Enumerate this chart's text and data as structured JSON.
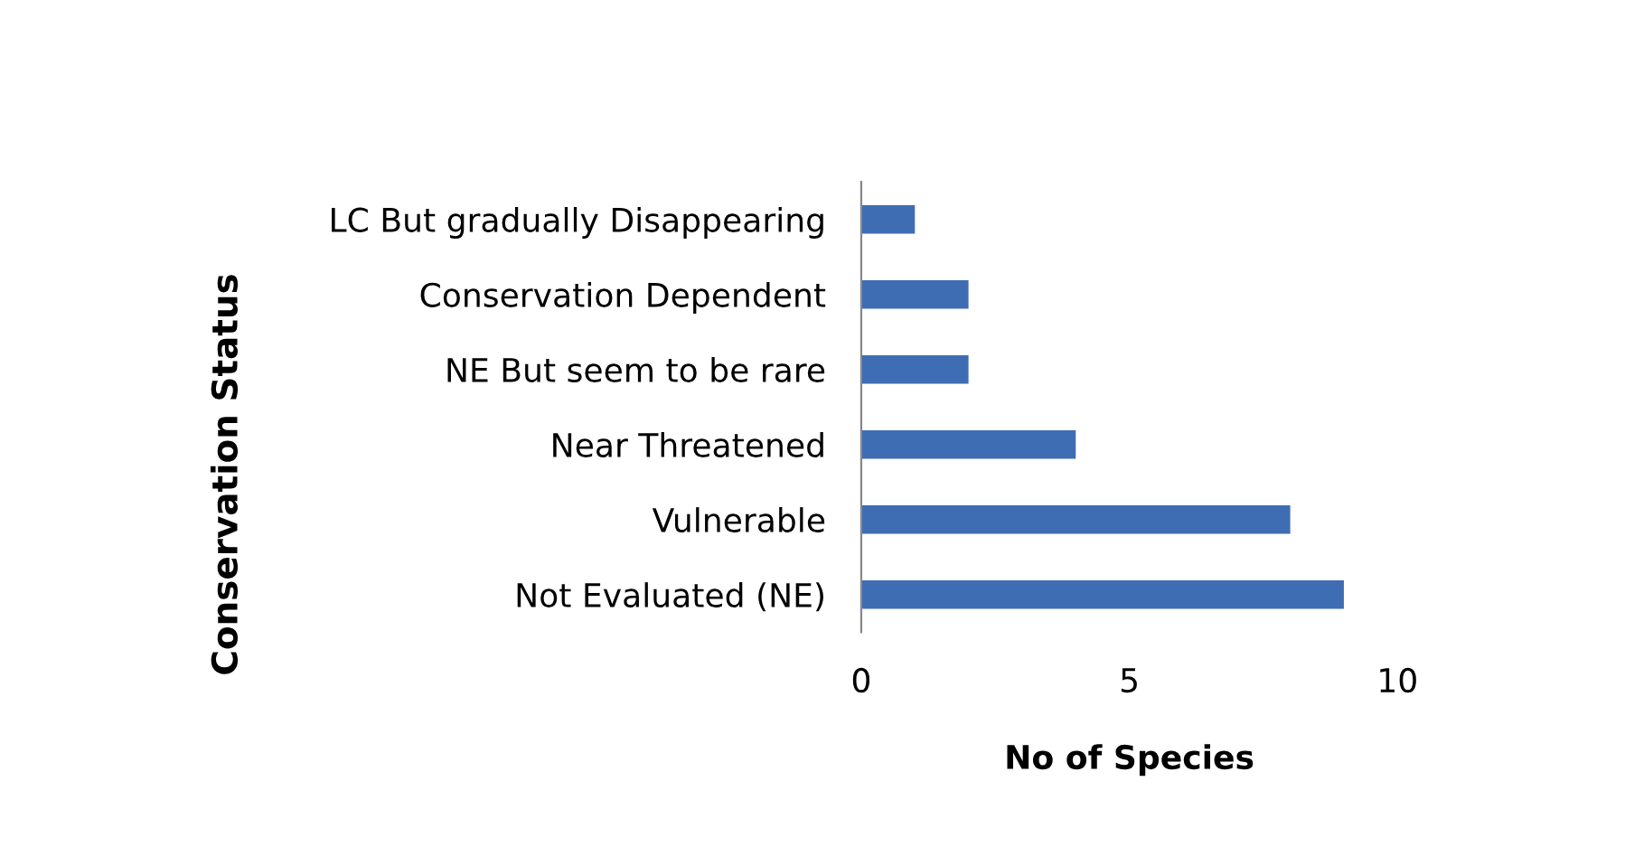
{
  "chart_data": {
    "type": "bar",
    "orientation": "horizontal",
    "xlabel": "No of Species",
    "ylabel": "Conservation Status",
    "categories": [
      "LC But gradually Disappearing",
      "Conservation Dependent",
      "NE But seem to be rare",
      "Near Threatened",
      "Vulnerable",
      "Not Evaluated (NE)"
    ],
    "values": [
      1,
      2,
      2,
      4,
      8,
      9
    ],
    "color": "#3f6db3",
    "xlim": [
      0,
      10
    ],
    "xticks": [
      0,
      5,
      10
    ],
    "grid": false,
    "legend": false
  }
}
